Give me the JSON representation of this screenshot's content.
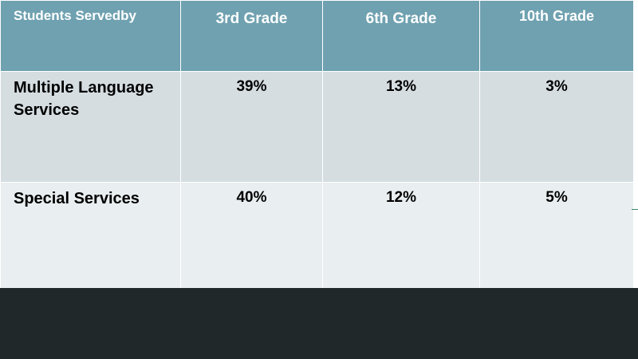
{
  "table": {
    "headers": [
      "Students Servedby",
      "3rd Grade",
      "6th Grade",
      "10th Grade"
    ],
    "rows": [
      {
        "label": "Multiple Language Services",
        "values": [
          "39%",
          "13%",
          "3%"
        ]
      },
      {
        "label": "Special Services",
        "values": [
          "40%",
          "12%",
          "5%"
        ]
      }
    ]
  },
  "colors": {
    "header_bg": "#6fa1b0",
    "row_a_bg": "#d5dde1",
    "row_b_bg": "#e9eef0",
    "footer_bg": "#212829"
  }
}
